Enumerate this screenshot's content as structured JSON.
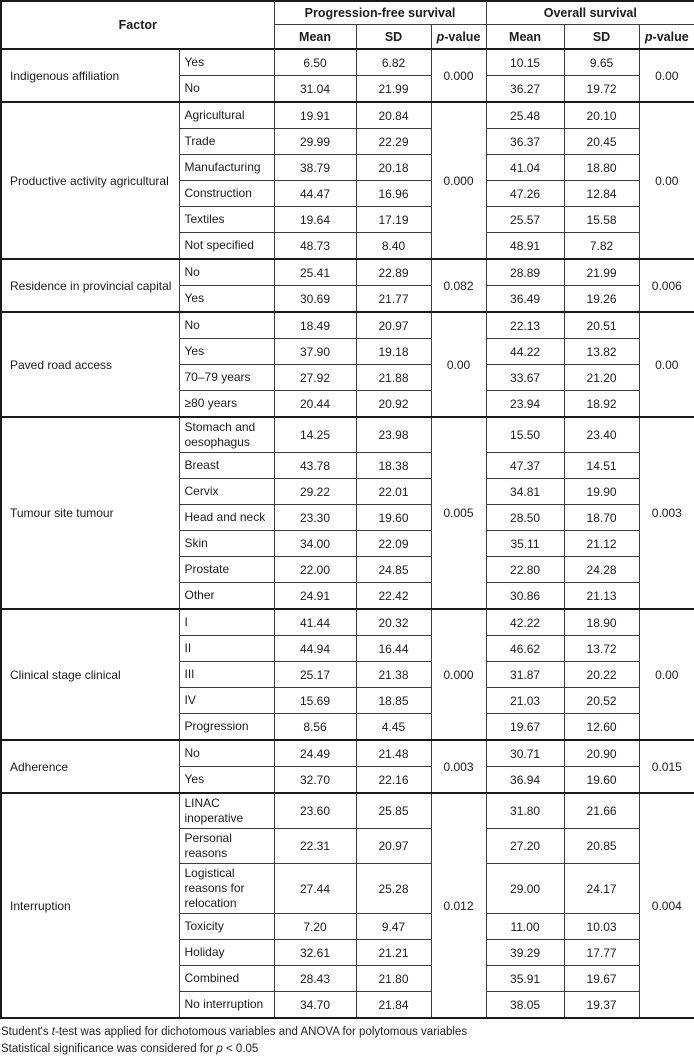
{
  "table": {
    "header": {
      "factor": "Factor",
      "groups": [
        {
          "label": "Progression-free survival"
        },
        {
          "label": "Overall survival"
        }
      ],
      "sub": {
        "mean": "Mean",
        "sd": "SD",
        "p_italic": "p",
        "p_rest": "-value"
      }
    },
    "groups": [
      {
        "factor": "Indigenous affiliation",
        "pfs_p": "0.000",
        "os_p": "0.00",
        "rows": [
          {
            "level": "Yes",
            "pfs_mean": "6.50",
            "pfs_sd": "6.82",
            "os_mean": "10.15",
            "os_sd": "9.65"
          },
          {
            "level": "No",
            "pfs_mean": "31.04",
            "pfs_sd": "21.99",
            "os_mean": "36.27",
            "os_sd": "19.72"
          }
        ]
      },
      {
        "factor": "Productive activity agricultural",
        "pfs_p": "0.000",
        "os_p": "0.00",
        "rows": [
          {
            "level": "Agricultural",
            "pfs_mean": "19.91",
            "pfs_sd": "20.84",
            "os_mean": "25.48",
            "os_sd": "20.10"
          },
          {
            "level": "Trade",
            "pfs_mean": "29.99",
            "pfs_sd": "22.29",
            "os_mean": "36.37",
            "os_sd": "20.45"
          },
          {
            "level": "Manufacturing",
            "pfs_mean": "38.79",
            "pfs_sd": "20.18",
            "os_mean": "41.04",
            "os_sd": "18.80"
          },
          {
            "level": "Construction",
            "pfs_mean": "44.47",
            "pfs_sd": "16.96",
            "os_mean": "47.26",
            "os_sd": "12.84"
          },
          {
            "level": "Textiles",
            "pfs_mean": "19.64",
            "pfs_sd": "17.19",
            "os_mean": "25.57",
            "os_sd": "15.58"
          },
          {
            "level": "Not specified",
            "pfs_mean": "48.73",
            "pfs_sd": "8.40",
            "os_mean": "48.91",
            "os_sd": "7.82"
          }
        ]
      },
      {
        "factor": "Residence in provincial capital",
        "pfs_p": "0.082",
        "os_p": "0.006",
        "rows": [
          {
            "level": "No",
            "pfs_mean": "25.41",
            "pfs_sd": "22.89",
            "os_mean": "28.89",
            "os_sd": "21.99"
          },
          {
            "level": "Yes",
            "pfs_mean": "30.69",
            "pfs_sd": "21.77",
            "os_mean": "36.49",
            "os_sd": "19.26"
          }
        ]
      },
      {
        "factor": "Paved road access",
        "pfs_p": "0.00",
        "os_p": "0.00",
        "rows": [
          {
            "level": "No",
            "pfs_mean": "18.49",
            "pfs_sd": "20.97",
            "os_mean": "22.13",
            "os_sd": "20.51"
          },
          {
            "level": "Yes",
            "pfs_mean": "37.90",
            "pfs_sd": "19.18",
            "os_mean": "44.22",
            "os_sd": "13.82"
          },
          {
            "level": "70–79 years",
            "pfs_mean": "27.92",
            "pfs_sd": "21.88",
            "os_mean": "33.67",
            "os_sd": "21.20"
          },
          {
            "level": "≥80 years",
            "pfs_mean": "20.44",
            "pfs_sd": "20.92",
            "os_mean": "23.94",
            "os_sd": "18.92"
          }
        ]
      },
      {
        "factor": "Tumour site tumour",
        "pfs_p": "0.005",
        "os_p": "0.003",
        "rows": [
          {
            "level": "Stomach and oesophagus",
            "pfs_mean": "14.25",
            "pfs_sd": "23.98",
            "os_mean": "15.50",
            "os_sd": "23.40"
          },
          {
            "level": "Breast",
            "pfs_mean": "43.78",
            "pfs_sd": "18.38",
            "os_mean": "47.37",
            "os_sd": "14.51"
          },
          {
            "level": "Cervix",
            "pfs_mean": "29.22",
            "pfs_sd": "22.01",
            "os_mean": "34.81",
            "os_sd": "19.90"
          },
          {
            "level": "Head and neck",
            "pfs_mean": "23.30",
            "pfs_sd": "19.60",
            "os_mean": "28.50",
            "os_sd": "18.70"
          },
          {
            "level": "Skin",
            "pfs_mean": "34.00",
            "pfs_sd": "22.09",
            "os_mean": "35.11",
            "os_sd": "21.12"
          },
          {
            "level": "Prostate",
            "pfs_mean": "22.00",
            "pfs_sd": "24.85",
            "os_mean": "22.80",
            "os_sd": "24.28"
          },
          {
            "level": "Other",
            "pfs_mean": "24.91",
            "pfs_sd": "22.42",
            "os_mean": "30.86",
            "os_sd": "21.13"
          }
        ]
      },
      {
        "factor": "Clinical stage clinical",
        "pfs_p": "0.000",
        "os_p": "0.00",
        "rows": [
          {
            "level": "I",
            "pfs_mean": "41.44",
            "pfs_sd": "20.32",
            "os_mean": "42.22",
            "os_sd": "18.90"
          },
          {
            "level": "II",
            "pfs_mean": "44.94",
            "pfs_sd": "16.44",
            "os_mean": "46.62",
            "os_sd": "13.72"
          },
          {
            "level": "III",
            "pfs_mean": "25.17",
            "pfs_sd": "21.38",
            "os_mean": "31.87",
            "os_sd": "20.22"
          },
          {
            "level": "IV",
            "pfs_mean": "15.69",
            "pfs_sd": "18.85",
            "os_mean": "21.03",
            "os_sd": "20.52"
          },
          {
            "level": "Progression",
            "pfs_mean": "8.56",
            "pfs_sd": "4.45",
            "os_mean": "19.67",
            "os_sd": "12.60"
          }
        ]
      },
      {
        "factor": "Adherence",
        "pfs_p": "0.003",
        "os_p": "0.015",
        "rows": [
          {
            "level": "No",
            "pfs_mean": "24.49",
            "pfs_sd": "21.48",
            "os_mean": "30.71",
            "os_sd": "20.90"
          },
          {
            "level": "Yes",
            "pfs_mean": "32.70",
            "pfs_sd": "22.16",
            "os_mean": "36.94",
            "os_sd": "19.60"
          }
        ]
      },
      {
        "factor": "Interruption",
        "pfs_p": "0.012",
        "os_p": "0.004",
        "rows": [
          {
            "level": "LINAC inoperative",
            "pfs_mean": "23.60",
            "pfs_sd": "25.85",
            "os_mean": "31.80",
            "os_sd": "21.66"
          },
          {
            "level": "Personal reasons",
            "pfs_mean": "22.31",
            "pfs_sd": "20.97",
            "os_mean": "27.20",
            "os_sd": "20.85"
          },
          {
            "level": "Logistical reasons for relocation",
            "pfs_mean": "27.44",
            "pfs_sd": "25.28",
            "os_mean": "29.00",
            "os_sd": "24.17"
          },
          {
            "level": "Toxicity",
            "pfs_mean": "7.20",
            "pfs_sd": "9.47",
            "os_mean": "11.00",
            "os_sd": "10.03"
          },
          {
            "level": "Holiday",
            "pfs_mean": "32.61",
            "pfs_sd": "21.21",
            "os_mean": "39.29",
            "os_sd": "17.77"
          },
          {
            "level": "Combined",
            "pfs_mean": "28.43",
            "pfs_sd": "21.80",
            "os_mean": "35.91",
            "os_sd": "19.67"
          },
          {
            "level": "No interruption",
            "pfs_mean": "34.70",
            "pfs_sd": "21.84",
            "os_mean": "38.05",
            "os_sd": "19.37"
          }
        ]
      }
    ]
  },
  "footnotes": {
    "note1_pre": "Student's ",
    "note1_italic": "t",
    "note1_post": "-test was applied for dichotomous variables and ANOVA for polytomous variables",
    "note2_pre": "Statistical significance was considered for ",
    "note2_italic": "p",
    "note2_post": " < 0.05"
  }
}
